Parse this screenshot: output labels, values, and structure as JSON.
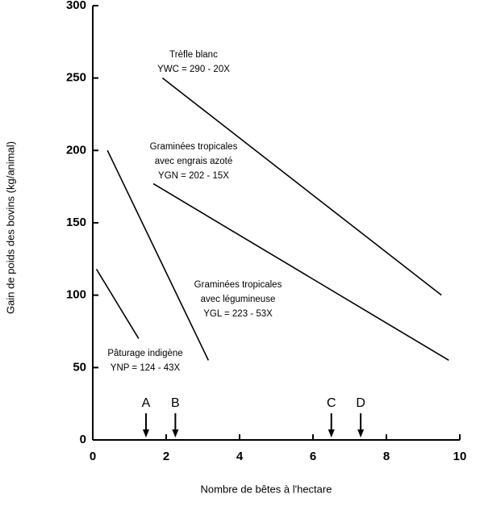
{
  "chart_data": {
    "type": "line",
    "x_label": "Nombre de bêtes à l'hectare",
    "y_label": "Gain de poids des bovins (kg/animal)",
    "xlim": [
      0,
      10
    ],
    "xticks": [
      0,
      2,
      4,
      6,
      8,
      10
    ],
    "ylim": [
      0,
      300
    ],
    "yticks": [
      0,
      50,
      100,
      150,
      200,
      250,
      300
    ],
    "series": [
      {
        "label": [
          "Trèfle blanc",
          "YWC = 290 - 20X"
        ],
        "color": "#000000",
        "x": [
          1.9,
          9.5
        ],
        "values": [
          250,
          100
        ]
      },
      {
        "label": [
          "Graminées tropicales",
          "avec engrais azoté",
          "YGN = 202 - 15X"
        ],
        "color": "#000000",
        "x": [
          1.65,
          9.7
        ],
        "values": [
          177,
          55
        ]
      },
      {
        "label": [
          "Graminées tropicales",
          "avec légumineuse",
          "YGL = 223 - 53X"
        ],
        "color": "#000000",
        "x": [
          0.4,
          3.15
        ],
        "values": [
          200,
          55
        ]
      },
      {
        "label": [
          "Pâturage indigène",
          "YNP = 124 - 43X"
        ],
        "color": "#000000",
        "x": [
          0.1,
          1.25
        ],
        "values": [
          118,
          70
        ]
      }
    ],
    "markers": {
      "labels": [
        "A",
        "B",
        "C",
        "D"
      ],
      "x": [
        1.45,
        2.25,
        6.5,
        7.3
      ]
    }
  }
}
